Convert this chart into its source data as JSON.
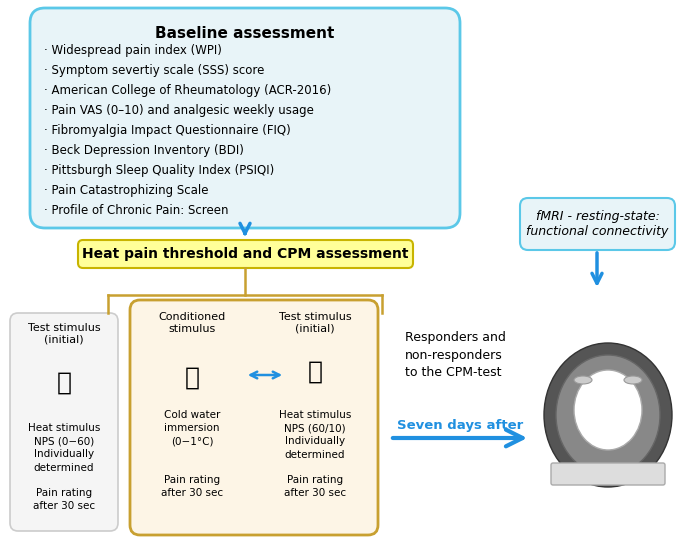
{
  "title": "Baseline assessment",
  "baseline_items": [
    "· Widespread pain index (WPI)",
    "· Symptom severtiy scale (SSS) score",
    "· American College of Rheumatology (ACR-2016)",
    "· Pain VAS (0–10) and analgesic weekly usage",
    "· Fibromyalgia Impact Questionnaire (FIQ)",
    "· Beck Depression Inventory (BDI)",
    "· Pittsburgh Sleep Quality Index (PSIQI)",
    "· Pain Catastrophizing Scale",
    "· Profile of Chronic Pain: Screen"
  ],
  "heat_pain_label": "Heat pain threshold and CPM assessment",
  "fmri_label": "fMRI - resting-state:\nfunctional connectivity",
  "test_stimulus_initial_title": "Test stimulus\n(initial)",
  "test_stimulus_initial_text1": "Heat stimulus\nNPS (0−60)\nIndividually\ndetermined",
  "test_stimulus_initial_text2": "Pain rating\nafter 30 sec",
  "conditioned_stimulus_title": "Conditioned\nstimulus",
  "conditioned_stimulus_text1": "Cold water\nimmersion\n(0−1°C)",
  "conditioned_stimulus_text2": "Pain rating\nafter 30 sec",
  "test_stimulus_post_title": "Test stimulus\n(initial)",
  "test_stimulus_post_text1": "Heat stimulus\nNPS (60/10)\nIndividually\ndetermined",
  "test_stimulus_post_text2": "Pain rating\nafter 30 sec",
  "responders_text": "Responders and\nnon-responders\nto the CPM-test",
  "seven_days_text": "Seven days after",
  "bg_color": "#ffffff",
  "baseline_box_bg": "#e8f4f8",
  "baseline_box_border": "#5bc8e8",
  "heat_pain_box_bg": "#ffff99",
  "heat_pain_box_border": "#c8b400",
  "conditioned_box_bg": "#fdf5e6",
  "conditioned_box_border": "#c8a030",
  "test_box_bg": "#f5f5f5",
  "test_box_border": "#cccccc",
  "fmri_box_bg": "#e8f4f8",
  "fmri_box_border": "#5bc8e8",
  "arrow_color": "#2090e0",
  "bracket_color": "#c8a030"
}
